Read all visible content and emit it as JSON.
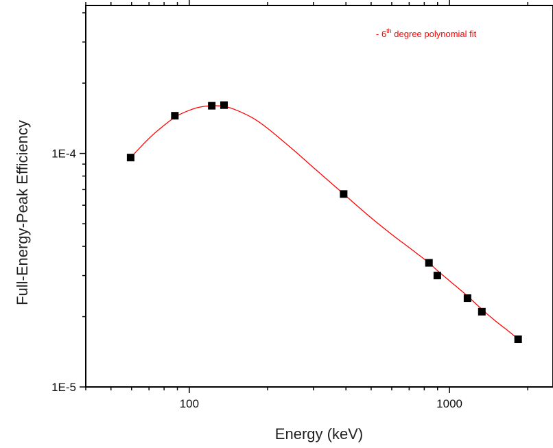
{
  "chart_data": {
    "type": "scatter",
    "title": "",
    "xlabel": "Energy (keV)",
    "ylabel": "Full-Energy-Peak Efficiency",
    "xscale": "log",
    "yscale": "log",
    "xlim": [
      40,
      2500
    ],
    "ylim": [
      1e-05,
      0.00043
    ],
    "xticks": [
      {
        "value": 100,
        "label": "100"
      },
      {
        "value": 1000,
        "label": "1000"
      }
    ],
    "yticks": [
      {
        "value": 1e-05,
        "label": "1E-5"
      },
      {
        "value": 0.0001,
        "label": "1E-4"
      }
    ],
    "grid": false,
    "legend": {
      "position": "top-right",
      "prefix": "- 6",
      "sup": "th",
      "suffix": " degree polynomial fit",
      "color": "#ff0000"
    },
    "series": [
      {
        "kind": "points",
        "marker": "square",
        "color": "#000000",
        "x": [
          59.5,
          88,
          122,
          136,
          392,
          834,
          898,
          1173,
          1332,
          1836
        ],
        "y": [
          9.6e-05,
          0.000145,
          0.00016,
          0.000161,
          6.7e-05,
          3.4e-05,
          3e-05,
          2.4e-05,
          2.1e-05,
          1.6e-05
        ]
      },
      {
        "kind": "fit",
        "color": "#ff0000",
        "x": [
          59.5,
          70,
          80,
          90,
          100,
          110,
          122,
          136,
          150,
          175,
          200,
          250,
          300,
          392,
          500,
          600,
          700,
          834,
          898,
          1000,
          1173,
          1332,
          1500,
          1700,
          1836
        ],
        "y": [
          9.6e-05,
          0.000116,
          0.000132,
          0.000145,
          0.000153,
          0.000158,
          0.00016,
          0.000159,
          0.000154,
          0.000142,
          0.000128,
          0.000104,
          8.7e-05,
          6.7e-05,
          5.3e-05,
          4.5e-05,
          3.95e-05,
          3.4e-05,
          3.15e-05,
          2.85e-05,
          2.45e-05,
          2.15e-05,
          1.92e-05,
          1.72e-05,
          1.6e-05
        ]
      }
    ]
  }
}
